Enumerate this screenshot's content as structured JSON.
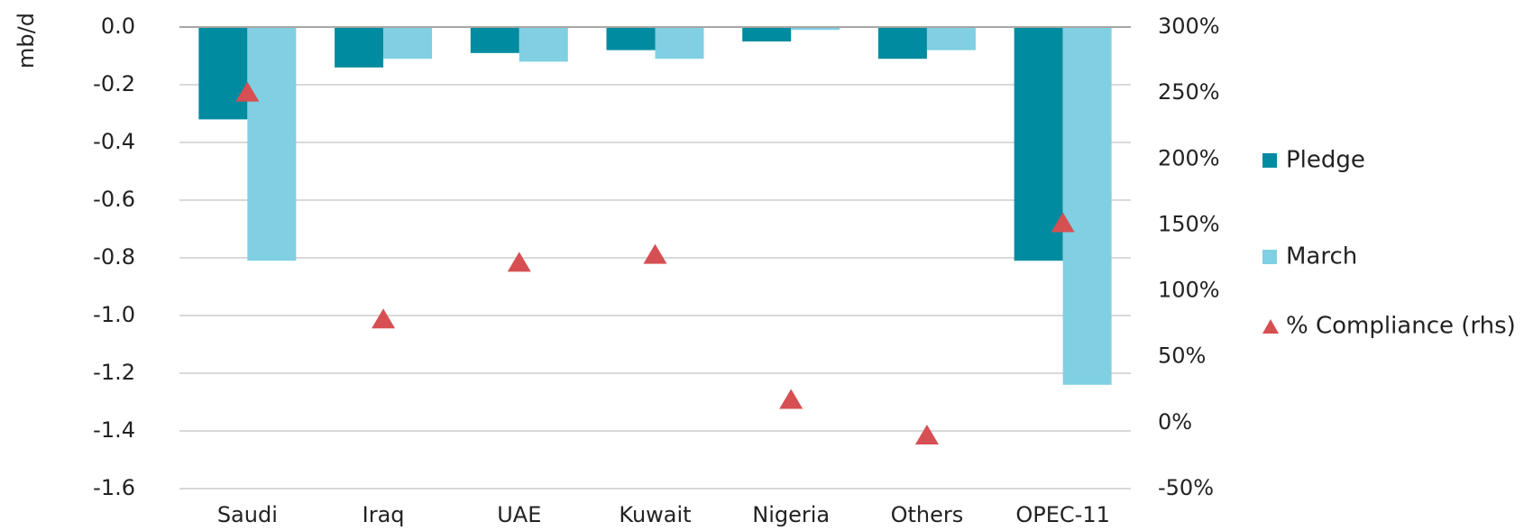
{
  "chart_data": {
    "type": "bar",
    "ylabel": "mb/d",
    "categories": [
      "Saudi",
      "Iraq",
      "UAE",
      "Kuwait",
      "Nigeria",
      "Others",
      "OPEC-11"
    ],
    "series": [
      {
        "name": "Pledge",
        "color": "#008ba0",
        "values": [
          -0.32,
          -0.14,
          -0.09,
          -0.08,
          -0.05,
          -0.11,
          -0.81
        ]
      },
      {
        "name": "March",
        "color": "#80cfe2",
        "values": [
          -0.81,
          -0.11,
          -0.12,
          -0.11,
          -0.01,
          -0.08,
          -1.24
        ]
      },
      {
        "name": "% Compliance (rhs)",
        "type": "scatter",
        "marker": "triangle",
        "axis": "y2",
        "color": "#d64f52",
        "values": [
          251,
          79,
          122,
          128,
          18,
          -9,
          152
        ]
      }
    ],
    "ylim": [
      -1.6,
      0
    ],
    "yticks": [
      {
        "value": 0,
        "label": "0.0"
      },
      -0.2,
      -0.4,
      -0.6,
      -0.8,
      {
        "value": -1,
        "label": "-1.0"
      },
      -1.2,
      -1.4,
      -1.6
    ],
    "y2lim": [
      -50,
      300
    ],
    "y2ticks": [
      {
        "value": 300,
        "label": "300%"
      },
      {
        "value": 250,
        "label": "250%"
      },
      {
        "value": 200,
        "label": "200%"
      },
      {
        "value": 150,
        "label": "150%"
      },
      {
        "value": 100,
        "label": "100%"
      },
      {
        "value": 50,
        "label": "50%"
      },
      {
        "value": 0,
        "label": "0%"
      },
      {
        "value": -50,
        "label": "-50%"
      }
    ],
    "grid": true,
    "legend": "right"
  }
}
